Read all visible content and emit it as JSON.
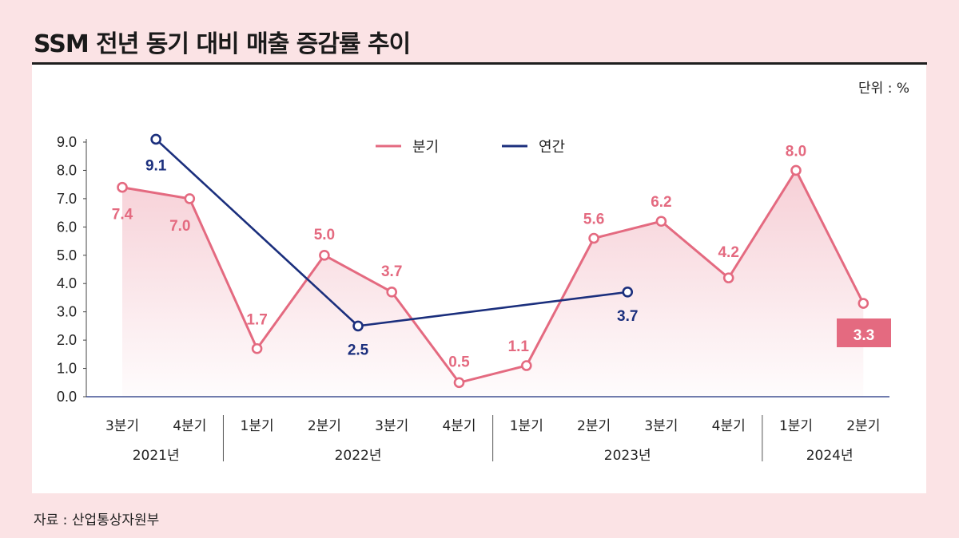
{
  "title": "SSM 전년 동기 대비 매출 증감률 추이",
  "unit_label": "단위 : %",
  "source": "자료 : 산업통상자원부",
  "colors": {
    "quarterly": "#e46a80",
    "annual": "#1b2f7d",
    "highlight_box": "#e46a80",
    "panel": "#ffffff",
    "page": "#fbe3e5"
  },
  "chart_data": {
    "type": "line",
    "title": "SSM 전년 동기 대비 매출 증감률 추이",
    "ylabel": "%",
    "ylim": [
      0,
      9
    ],
    "yticks": [
      "0.0",
      "1.0",
      "2.0",
      "3.0",
      "4.0",
      "5.0",
      "6.0",
      "7.0",
      "8.0",
      "9.0"
    ],
    "categories": [
      "3분기",
      "4분기",
      "1분기",
      "2분기",
      "3분기",
      "4분기",
      "1분기",
      "2분기",
      "3분기",
      "4분기",
      "1분기",
      "2분기"
    ],
    "year_groups": [
      {
        "label": "2021년",
        "start": 0,
        "end": 1
      },
      {
        "label": "2022년",
        "start": 2,
        "end": 5
      },
      {
        "label": "2023년",
        "start": 6,
        "end": 9
      },
      {
        "label": "2024년",
        "start": 10,
        "end": 11
      }
    ],
    "series": [
      {
        "name": "분기",
        "values": [
          7.4,
          7.0,
          1.7,
          5.0,
          3.7,
          0.5,
          1.1,
          5.6,
          6.2,
          4.2,
          8.0,
          3.3
        ],
        "labels": [
          "7.4",
          "7.0",
          "1.7",
          "5.0",
          "3.7",
          "0.5",
          "1.1",
          "5.6",
          "6.2",
          "4.2",
          "8.0",
          "3.3"
        ]
      },
      {
        "name": "연간",
        "points": [
          {
            "x": 0.5,
            "y": 9.1,
            "label": "9.1"
          },
          {
            "x": 3.5,
            "y": 2.5,
            "label": "2.5"
          },
          {
            "x": 7.5,
            "y": 3.7,
            "label": "3.7"
          }
        ]
      }
    ],
    "highlight": {
      "index": 11,
      "label": "3.3"
    },
    "legend": [
      "분기",
      "연간"
    ],
    "legend_position": "top-center"
  }
}
